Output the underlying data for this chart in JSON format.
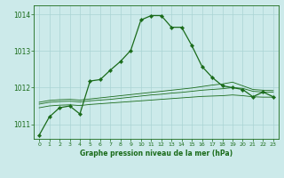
{
  "title": "Graphe pression niveau de la mer (hPa)",
  "bg_color": "#cceaea",
  "grid_color": "#aad4d4",
  "line_color": "#1a6b1a",
  "xlim": [
    -0.5,
    23.5
  ],
  "ylim": [
    1010.6,
    1014.25
  ],
  "yticks": [
    1011,
    1012,
    1013,
    1014
  ],
  "xticks": [
    0,
    1,
    2,
    3,
    4,
    5,
    6,
    7,
    8,
    9,
    10,
    11,
    12,
    13,
    14,
    15,
    16,
    17,
    18,
    19,
    20,
    21,
    22,
    23
  ],
  "flat1_x": [
    0,
    1,
    2,
    3,
    4,
    5,
    6,
    7,
    8,
    9,
    10,
    11,
    12,
    13,
    14,
    15,
    16,
    17,
    18,
    19,
    20,
    21,
    22,
    23
  ],
  "flat1_y": [
    1011.45,
    1011.5,
    1011.52,
    1011.53,
    1011.51,
    1011.54,
    1011.56,
    1011.58,
    1011.6,
    1011.62,
    1011.64,
    1011.66,
    1011.68,
    1011.7,
    1011.72,
    1011.74,
    1011.76,
    1011.77,
    1011.78,
    1011.8,
    1011.78,
    1011.75,
    1011.74,
    1011.74
  ],
  "flat2_x": [
    0,
    1,
    2,
    3,
    4,
    5,
    6,
    7,
    8,
    9,
    10,
    11,
    12,
    13,
    14,
    15,
    16,
    17,
    18,
    19,
    20,
    21,
    22,
    23
  ],
  "flat2_y": [
    1011.55,
    1011.6,
    1011.62,
    1011.63,
    1011.61,
    1011.64,
    1011.66,
    1011.68,
    1011.71,
    1011.74,
    1011.77,
    1011.8,
    1011.82,
    1011.85,
    1011.87,
    1011.9,
    1011.93,
    1011.95,
    1011.97,
    1012.0,
    1011.98,
    1011.9,
    1011.88,
    1011.88
  ],
  "flat3_x": [
    0,
    1,
    2,
    3,
    4,
    5,
    6,
    7,
    8,
    9,
    10,
    11,
    12,
    13,
    14,
    15,
    16,
    17,
    18,
    19,
    20,
    21,
    22,
    23
  ],
  "flat3_y": [
    1011.6,
    1011.65,
    1011.67,
    1011.68,
    1011.66,
    1011.69,
    1011.72,
    1011.75,
    1011.78,
    1011.81,
    1011.84,
    1011.87,
    1011.9,
    1011.93,
    1011.96,
    1011.99,
    1012.03,
    1012.07,
    1012.1,
    1012.15,
    1012.05,
    1011.95,
    1011.93,
    1011.92
  ],
  "main_x": [
    0,
    1,
    2,
    3,
    4,
    5,
    6,
    7,
    8,
    9,
    10,
    11,
    12,
    13,
    14,
    15,
    16,
    17,
    18,
    19,
    20,
    21,
    22,
    23
  ],
  "main_y": [
    1010.7,
    1011.2,
    1011.45,
    1011.5,
    1011.28,
    1012.18,
    1012.22,
    1012.48,
    1012.72,
    1013.02,
    1013.85,
    1013.97,
    1013.97,
    1013.65,
    1013.65,
    1013.15,
    1012.58,
    1012.28,
    1012.05,
    1012.0,
    1011.95,
    1011.75,
    1011.88,
    1011.75
  ]
}
